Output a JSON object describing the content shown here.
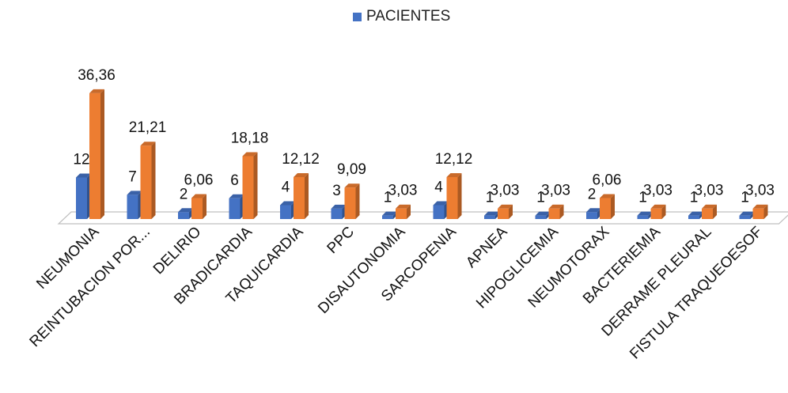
{
  "chart_data": {
    "type": "bar",
    "title": "",
    "legend": {
      "entries": [
        "PACIENTES"
      ],
      "placement": "top-center"
    },
    "categories": [
      "NEUMONIA",
      "REINTUBACION POR...",
      "DELIRIO",
      "BRADICARDIA",
      "TAQUICARDIA",
      "PPC",
      "DISAUTONOMIA",
      "SARCOPENIA",
      "APNEA",
      "HIPOGLICEMIA",
      "NEUMOTORAX",
      "BACTERIEMIA",
      "DERRAME PLEURAL",
      "FISTULA TRAQUEOESOF"
    ],
    "series": [
      {
        "name": "PACIENTES",
        "color": "#4472C4",
        "values": [
          12,
          7,
          2,
          6,
          4,
          3,
          1,
          4,
          1,
          1,
          2,
          1,
          1,
          1
        ],
        "labels": [
          "12",
          "7",
          "2",
          "6",
          "4",
          "3",
          "1",
          "4",
          "1",
          "1",
          "2",
          "1",
          "1",
          "1"
        ]
      },
      {
        "color": "#ED7D31",
        "values": [
          36.36,
          21.21,
          6.06,
          18.18,
          12.12,
          9.09,
          3.03,
          12.12,
          3.03,
          3.03,
          6.06,
          3.03,
          3.03,
          3.03
        ],
        "labels": [
          "36,36",
          "21,21",
          "6,06",
          "18,18",
          "12,12",
          "9,09",
          "3,03",
          "12,12",
          "3,03",
          "3,03",
          "6,06",
          "3,03",
          "3,03",
          "3,03"
        ]
      }
    ],
    "ylim": [
      0,
      40
    ],
    "grid": false,
    "style": "3d-column"
  }
}
